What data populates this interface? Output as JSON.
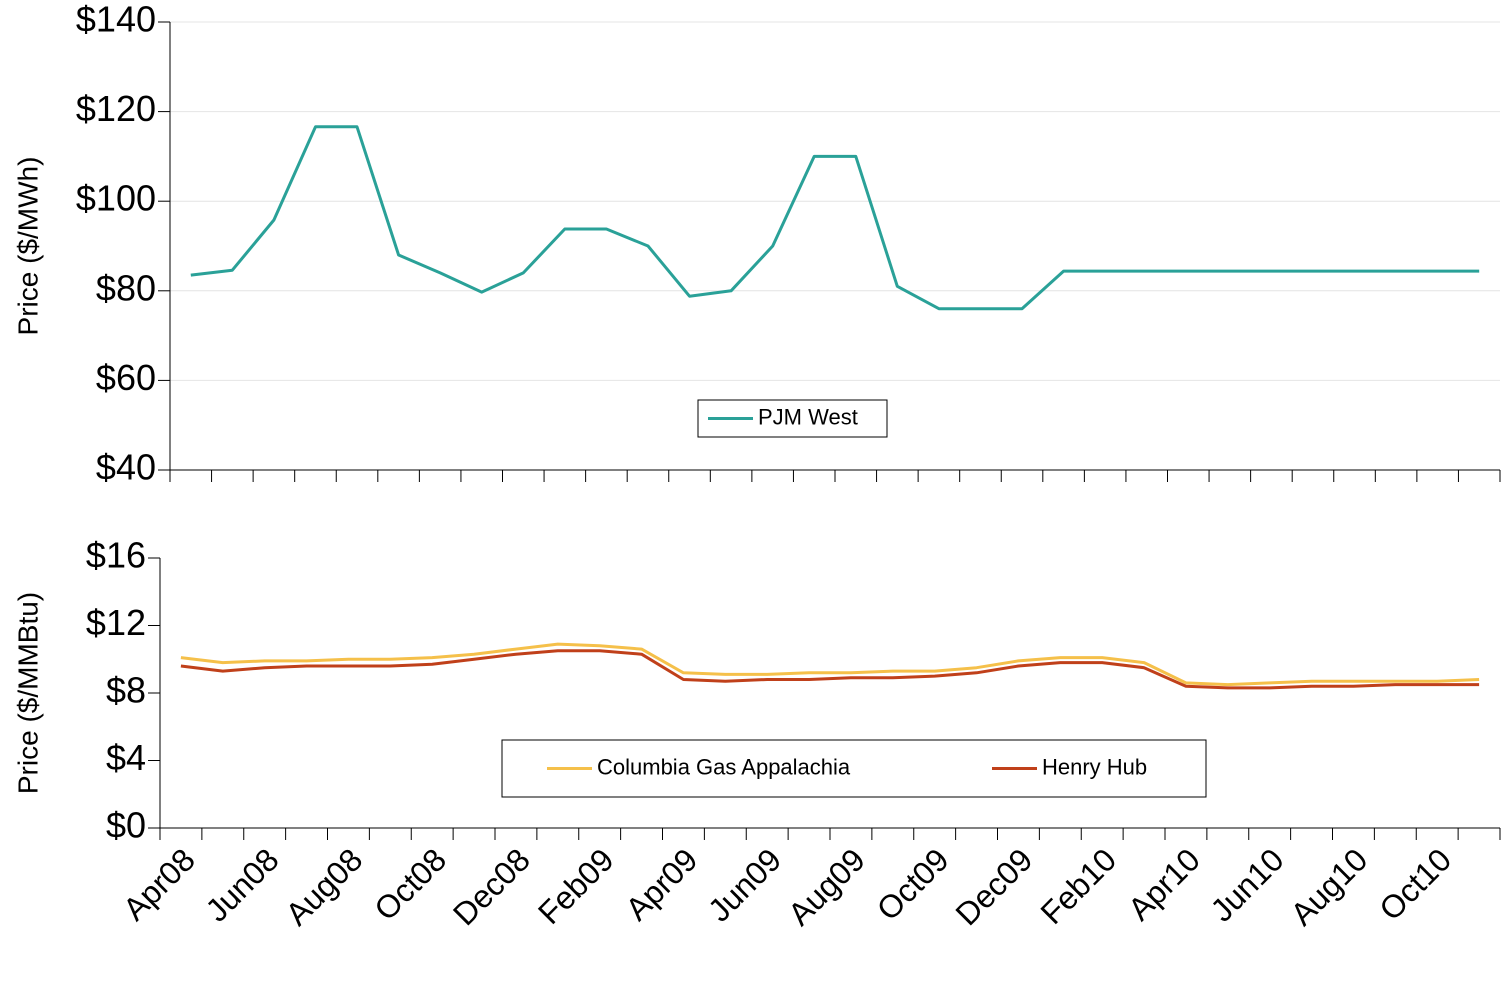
{
  "chart_data": [
    {
      "type": "line",
      "ylabel": "Price ($/MWh)",
      "series": [
        {
          "name": "PJM West",
          "color": "#2aa198",
          "values": [
            83.5,
            84.6,
            95.8,
            116.6,
            116.6,
            88,
            84,
            79.7,
            84,
            93.8,
            93.8,
            90,
            78.8,
            80,
            90,
            110,
            110,
            81,
            76,
            76,
            76,
            84.4,
            84.4,
            84.4,
            84.4,
            84.4,
            84.4,
            84.4,
            84.4,
            84.4,
            84.4,
            84.4
          ]
        }
      ],
      "ylim": [
        40,
        140
      ],
      "yticks": [
        {
          "value": 40,
          "label": "$40"
        },
        {
          "value": 60,
          "label": "$60"
        },
        {
          "value": 80,
          "label": "$80"
        },
        {
          "value": 100,
          "label": "$100"
        },
        {
          "value": 120,
          "label": "$120"
        },
        {
          "value": 140,
          "label": "$140"
        }
      ],
      "grid": true
    },
    {
      "type": "line",
      "ylabel": "Price ($/MMBtu)",
      "categories": [
        "Apr08",
        null,
        "Jun08",
        null,
        "Aug08",
        null,
        "Oct08",
        null,
        "Dec08",
        null,
        "Feb09",
        null,
        "Apr09",
        null,
        "Jun09",
        null,
        "Aug09",
        null,
        "Oct09",
        null,
        "Dec09",
        null,
        "Feb10",
        null,
        "Apr10",
        null,
        "Jun10",
        null,
        "Aug10",
        null,
        "Oct10",
        null
      ],
      "series": [
        {
          "name": "Columbia Gas Appalachia",
          "color": "#f5c04a",
          "values": [
            10.1,
            9.8,
            9.9,
            9.9,
            10.0,
            10.0,
            10.1,
            10.3,
            10.6,
            10.9,
            10.8,
            10.6,
            9.2,
            9.1,
            9.1,
            9.2,
            9.2,
            9.3,
            9.3,
            9.5,
            9.9,
            10.1,
            10.1,
            9.8,
            8.6,
            8.5,
            8.6,
            8.7,
            8.7,
            8.7,
            8.7,
            8.8
          ]
        },
        {
          "name": "Henry Hub",
          "color": "#c0401a",
          "values": [
            9.6,
            9.3,
            9.5,
            9.6,
            9.6,
            9.6,
            9.7,
            10.0,
            10.3,
            10.5,
            10.5,
            10.3,
            8.8,
            8.7,
            8.8,
            8.8,
            8.9,
            8.9,
            9.0,
            9.2,
            9.6,
            9.8,
            9.8,
            9.5,
            8.4,
            8.3,
            8.3,
            8.4,
            8.4,
            8.5,
            8.5,
            8.5
          ]
        }
      ],
      "ylim": [
        0,
        16
      ],
      "yticks": [
        {
          "value": 0,
          "label": "$0"
        },
        {
          "value": 4,
          "label": "$4"
        },
        {
          "value": 8,
          "label": "$8"
        },
        {
          "value": 12,
          "label": "$12"
        },
        {
          "value": 16,
          "label": "$16"
        }
      ],
      "grid": false
    }
  ]
}
